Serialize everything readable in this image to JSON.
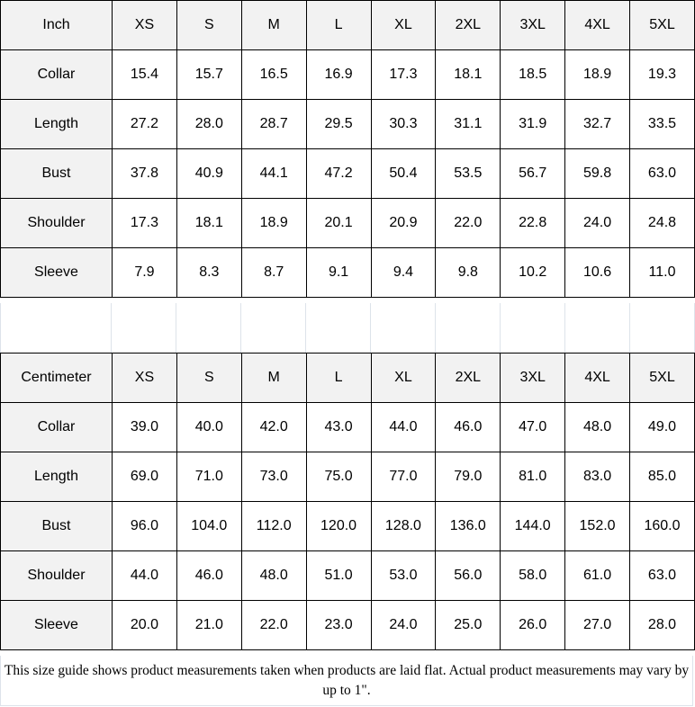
{
  "tables": [
    {
      "unit": "Inch",
      "sizes": [
        "XS",
        "S",
        "M",
        "L",
        "XL",
        "2XL",
        "3XL",
        "4XL",
        "5XL"
      ],
      "rows": [
        {
          "label": "Collar",
          "values": [
            "15.4",
            "15.7",
            "16.5",
            "16.9",
            "17.3",
            "18.1",
            "18.5",
            "18.9",
            "19.3"
          ]
        },
        {
          "label": "Length",
          "values": [
            "27.2",
            "28.0",
            "28.7",
            "29.5",
            "30.3",
            "31.1",
            "31.9",
            "32.7",
            "33.5"
          ]
        },
        {
          "label": "Bust",
          "values": [
            "37.8",
            "40.9",
            "44.1",
            "47.2",
            "50.4",
            "53.5",
            "56.7",
            "59.8",
            "63.0"
          ]
        },
        {
          "label": "Shoulder",
          "values": [
            "17.3",
            "18.1",
            "18.9",
            "20.1",
            "20.9",
            "22.0",
            "22.8",
            "24.0",
            "24.8"
          ]
        },
        {
          "label": "Sleeve",
          "values": [
            "7.9",
            "8.3",
            "8.7",
            "9.1",
            "9.4",
            "9.8",
            "10.2",
            "10.6",
            "11.0"
          ]
        }
      ]
    },
    {
      "unit": "Centimeter",
      "sizes": [
        "XS",
        "S",
        "M",
        "L",
        "XL",
        "2XL",
        "3XL",
        "4XL",
        "5XL"
      ],
      "rows": [
        {
          "label": "Collar",
          "values": [
            "39.0",
            "40.0",
            "42.0",
            "43.0",
            "44.0",
            "46.0",
            "47.0",
            "48.0",
            "49.0"
          ]
        },
        {
          "label": "Length",
          "values": [
            "69.0",
            "71.0",
            "73.0",
            "75.0",
            "77.0",
            "79.0",
            "81.0",
            "83.0",
            "85.0"
          ]
        },
        {
          "label": "Bust",
          "values": [
            "96.0",
            "104.0",
            "112.0",
            "120.0",
            "128.0",
            "136.0",
            "144.0",
            "152.0",
            "160.0"
          ]
        },
        {
          "label": "Shoulder",
          "values": [
            "44.0",
            "46.0",
            "48.0",
            "51.0",
            "53.0",
            "56.0",
            "58.0",
            "61.0",
            "63.0"
          ]
        },
        {
          "label": "Sleeve",
          "values": [
            "20.0",
            "21.0",
            "22.0",
            "23.0",
            "24.0",
            "25.0",
            "26.0",
            "27.0",
            "28.0"
          ]
        }
      ]
    }
  ],
  "footer": "This size guide shows product measurements taken when products are laid flat. Actual product measurements may vary by up to 1\".",
  "colors": {
    "header_bg": "#f2f2f2",
    "border": "#000000",
    "spacer_line": "#dde3ea"
  }
}
